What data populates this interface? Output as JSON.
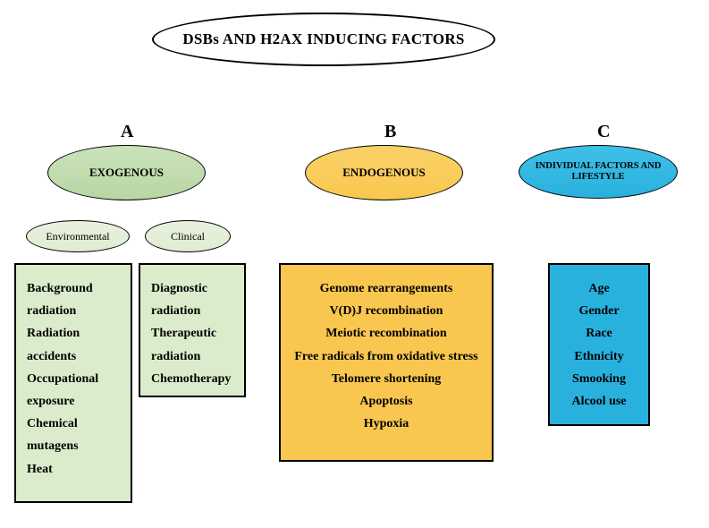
{
  "title": "DSBs AND H2AX INDUCING FACTORS",
  "letters": {
    "a": "A",
    "b": "B",
    "c": "C"
  },
  "categories": {
    "a": {
      "label": "EXOGENOUS",
      "fill": "#c0dcab",
      "sub_env": "Environmental",
      "sub_clin": "Clinical"
    },
    "b": {
      "label": "ENDOGENOUS",
      "fill": "#f9c74f"
    },
    "c": {
      "label": "INDIVIDUAL FACTORS AND LIFESTYLE",
      "fill": "#29b1de"
    }
  },
  "boxes": {
    "env": {
      "fill": "#daeccc",
      "items": [
        "Background radiation",
        "Radiation accidents",
        "Occupational exposure",
        "Chemical mutagens",
        "Heat"
      ]
    },
    "clin": {
      "fill": "#daeccc",
      "items": [
        "Diagnostic radiation",
        "Therapeutic radiation",
        "Chemotherapy"
      ]
    },
    "endo": {
      "fill": "#f9c74f",
      "items": [
        "Genome rearrangements",
        "V(D)J recombination",
        "Meiotic recombination",
        "Free radicals from oxidative stress",
        "Telomere shortening",
        "Apoptosis",
        "Hypoxia"
      ]
    },
    "life": {
      "fill": "#29b1de",
      "items": [
        "Age",
        "Gender",
        "Race",
        "Ethnicity",
        "Smooking",
        "Alcool use"
      ]
    }
  },
  "style": {
    "background": "#ffffff",
    "border_color": "#000000",
    "title_fontsize": 17,
    "letter_fontsize": 20,
    "cat_fontsize": 13,
    "cat_c_fontsize": 10.5,
    "sub_fontsize": 12,
    "list_fontsize": 14,
    "font_family": "Book Antiqua, Palatino, serif"
  }
}
